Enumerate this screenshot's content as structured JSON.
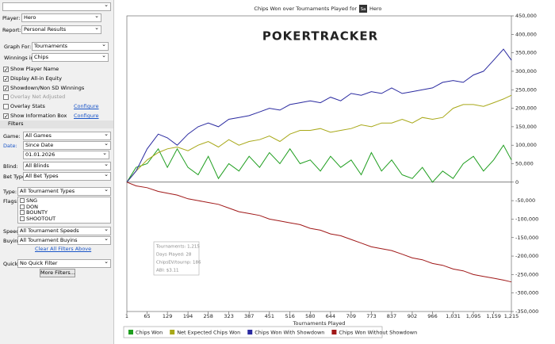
{
  "sidebar": {
    "top": [
      {
        "label": "Player:",
        "value": "Hero"
      },
      {
        "label": "Report:",
        "value": "Personal Results"
      }
    ],
    "graph": [
      {
        "label": "Graph For:",
        "value": "Tournaments"
      },
      {
        "label": "Winnings in:",
        "value": "Chips"
      }
    ],
    "options": [
      {
        "label": "Show Player Name",
        "checked": true
      },
      {
        "label": "Display All-in Equity",
        "checked": true
      },
      {
        "label": "Showdown/Non SD Winnings",
        "checked": true
      },
      {
        "label": "Overlay Net Adjusted",
        "checked": false,
        "disabled": true
      },
      {
        "label": "Overlay Stats",
        "checked": false,
        "link": "Configure"
      },
      {
        "label": "Show Information Box",
        "checked": true,
        "link": "Configure"
      }
    ],
    "filters_title": "Filters",
    "filters": [
      {
        "label": "Game:",
        "value": "All Games"
      },
      {
        "label": "Date:",
        "value": "Since Date"
      },
      {
        "label": "Blind:",
        "value": "All Blinds"
      },
      {
        "label": "Bet Type:",
        "value": "All Bet Types"
      },
      {
        "label": "Type:",
        "value": "All Tournament Types"
      },
      {
        "label": "Speed:",
        "value": "All Tournament Speeds"
      },
      {
        "label": "Buyin:",
        "value": "All Tournament Buyins"
      },
      {
        "label": "Quick:",
        "value": "No Quick Filter"
      }
    ],
    "date_from": "01.01.2026",
    "flags_label": "Flags:",
    "flags": [
      "SNG",
      "DON",
      "BOUNTY",
      "SHOOTOUT"
    ],
    "clear_filters": "Clear All Filters Above",
    "more_filters": "More Filters..."
  },
  "chart_data": {
    "type": "line",
    "title": "Chips Won over Tournaments Played for",
    "title_badge": "Sa",
    "title_player": "Hero",
    "watermark": "POKERTRACKER",
    "x_label": "Tournaments Played",
    "x": [
      1,
      30,
      65,
      100,
      129,
      160,
      194,
      226,
      258,
      290,
      323,
      355,
      387,
      420,
      451,
      484,
      516,
      548,
      580,
      612,
      644,
      676,
      709,
      741,
      773,
      805,
      837,
      870,
      902,
      934,
      966,
      998,
      1031,
      1063,
      1095,
      1127,
      1159,
      1190,
      1215
    ],
    "series": [
      {
        "name": "Chips Won",
        "color": "#1f9e1f",
        "values": [
          0,
          40000,
          50000,
          90000,
          40000,
          90000,
          40000,
          20000,
          70000,
          10000,
          50000,
          30000,
          70000,
          40000,
          80000,
          50000,
          90000,
          50000,
          60000,
          30000,
          70000,
          40000,
          60000,
          20000,
          80000,
          30000,
          60000,
          20000,
          10000,
          40000,
          0,
          30000,
          10000,
          50000,
          70000,
          30000,
          60000,
          100000,
          60000
        ]
      },
      {
        "name": "Net Expected Chips Won",
        "color": "#a8a818",
        "values": [
          0,
          30000,
          60000,
          80000,
          90000,
          95000,
          85000,
          100000,
          110000,
          95000,
          115000,
          100000,
          110000,
          115000,
          125000,
          110000,
          130000,
          140000,
          140000,
          145000,
          135000,
          140000,
          145000,
          155000,
          150000,
          160000,
          160000,
          170000,
          160000,
          175000,
          170000,
          175000,
          200000,
          210000,
          210000,
          205000,
          215000,
          225000,
          235000
        ]
      },
      {
        "name": "Chips Won With Showdown",
        "color": "#2a2aa0",
        "values": [
          0,
          30000,
          90000,
          130000,
          120000,
          100000,
          130000,
          150000,
          160000,
          150000,
          170000,
          175000,
          180000,
          190000,
          200000,
          195000,
          210000,
          215000,
          220000,
          215000,
          230000,
          220000,
          240000,
          235000,
          245000,
          240000,
          255000,
          240000,
          245000,
          250000,
          255000,
          270000,
          275000,
          270000,
          290000,
          300000,
          330000,
          360000,
          330000
        ]
      },
      {
        "name": "Chips Won Without Showdown",
        "color": "#a01818",
        "values": [
          0,
          -10000,
          -15000,
          -25000,
          -30000,
          -35000,
          -45000,
          -50000,
          -55000,
          -60000,
          -70000,
          -80000,
          -85000,
          -90000,
          -100000,
          -105000,
          -110000,
          -115000,
          -125000,
          -130000,
          -140000,
          -145000,
          -155000,
          -165000,
          -175000,
          -180000,
          -185000,
          -195000,
          -205000,
          -210000,
          -220000,
          -225000,
          -235000,
          -240000,
          -250000,
          -255000,
          -260000,
          -265000,
          -270000
        ]
      }
    ],
    "xlim": [
      1,
      1215
    ],
    "xticks": [
      1,
      65,
      129,
      194,
      258,
      323,
      387,
      451,
      516,
      580,
      644,
      709,
      773,
      837,
      902,
      966,
      {
        "value": 1031,
        "label": "1,031"
      },
      {
        "value": 1095,
        "label": "1,095"
      },
      {
        "value": 1159,
        "label": "1,159"
      },
      {
        "value": 1215,
        "label": "1,215"
      }
    ],
    "ylim": [
      -350000,
      450000
    ],
    "yticks": [
      {
        "value": -350000,
        "label": "-350,000"
      },
      {
        "value": -300000,
        "label": "-300,000"
      },
      {
        "value": -250000,
        "label": "-250,000"
      },
      {
        "value": -200000,
        "label": "-200,000"
      },
      {
        "value": -150000,
        "label": "-150,000"
      },
      {
        "value": -100000,
        "label": "-100,000"
      },
      {
        "value": -50000,
        "label": "-50,000"
      },
      0,
      {
        "value": 50000,
        "label": "50,000"
      },
      {
        "value": 100000,
        "label": "100,000"
      },
      {
        "value": 150000,
        "label": "150,000"
      },
      {
        "value": 200000,
        "label": "200,000"
      },
      {
        "value": 250000,
        "label": "250,000"
      },
      {
        "value": 300000,
        "label": "300,000"
      },
      {
        "value": 350000,
        "label": "350,000"
      },
      {
        "value": 400000,
        "label": "400,000"
      },
      {
        "value": 450000,
        "label": "450,000"
      }
    ],
    "info_box": [
      "Tournaments: 1,215",
      "Days Played: 28",
      "ChipsEV/tournp: 186",
      "ABI: $3.11"
    ],
    "legend": "bottom"
  }
}
